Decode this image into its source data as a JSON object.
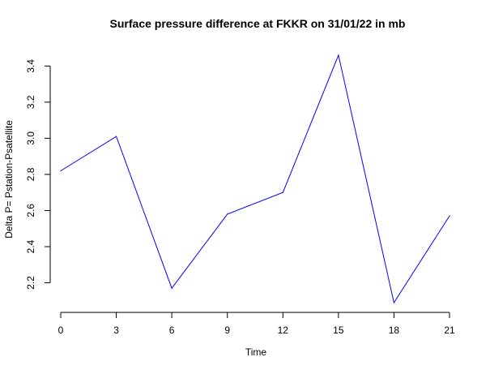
{
  "chart_data": {
    "type": "line",
    "title": "Surface pressure difference at FKKR on 31/01/22 in mb",
    "xlabel": "Time",
    "ylabel": "Delta P= Pstation-Psatellite",
    "x": [
      0,
      3,
      6,
      9,
      12,
      15,
      18,
      21
    ],
    "series": [
      {
        "values": [
          2.82,
          3.01,
          2.17,
          2.58,
          2.7,
          3.46,
          2.09,
          2.57
        ],
        "color": "#0000ff"
      }
    ],
    "xticks": [
      0,
      3,
      6,
      9,
      12,
      15,
      18,
      21
    ],
    "xtick_labels": [
      "0",
      "3",
      "6",
      "9",
      "12",
      "15",
      "18",
      "21"
    ],
    "yticks": [
      2.2,
      2.4,
      2.6,
      2.8,
      3.0,
      3.2,
      3.4
    ],
    "ytick_labels": [
      "2.2",
      "2.4",
      "2.6",
      "2.8",
      "3.0",
      "3.2",
      "3.4"
    ],
    "xlim": [
      0,
      21
    ],
    "ylim": [
      2.09,
      3.46
    ],
    "grid": false,
    "legend": "none"
  }
}
